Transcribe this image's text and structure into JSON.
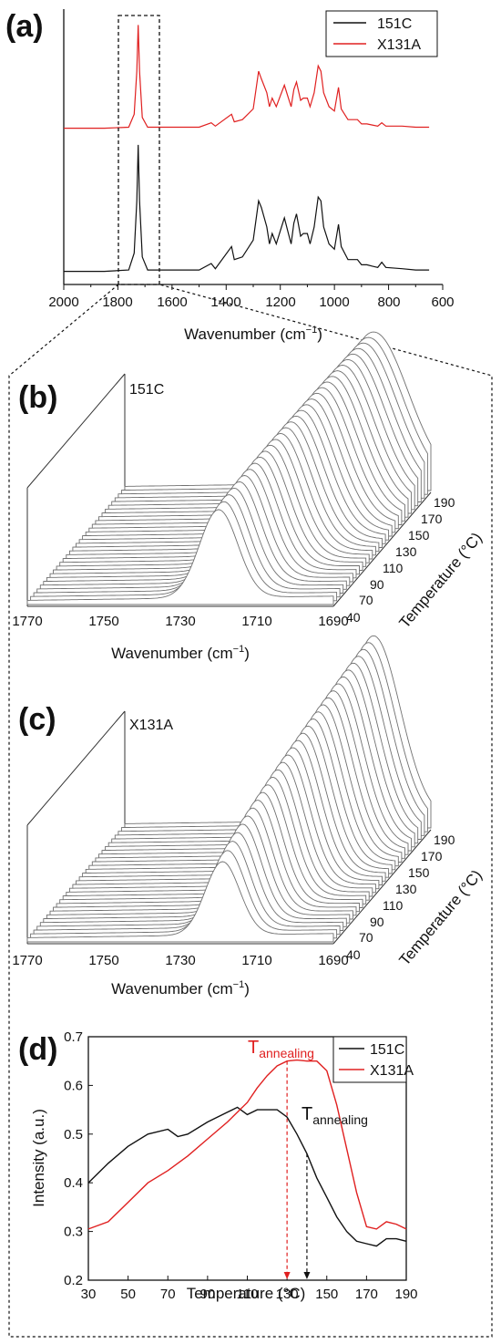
{
  "colors": {
    "s151C": "#111111",
    "sX131A": "#e02020",
    "stack": "#707070"
  },
  "panels": {
    "a": {
      "letter": "(a)",
      "xlabel": "Wavenumber (cm",
      "xlabel_sup": "−1",
      "xlabel_tail": ")",
      "xticks": [
        "2000",
        "1800",
        "1600",
        "1400",
        "1200",
        "1000",
        "800",
        "600"
      ],
      "legend": [
        "151C",
        "X131A"
      ]
    },
    "b": {
      "letter": "(b)",
      "label": "151C",
      "xticks": [
        "1770",
        "1750",
        "1730",
        "1710",
        "1690"
      ],
      "xlabel": "Wavenumber (cm",
      "xlabel_sup": "−1",
      "xlabel_tail": ")",
      "ticks_temp": [
        "40",
        "70",
        "90",
        "110",
        "130",
        "150",
        "170",
        "190"
      ],
      "temp_label": "Temperature (°C)"
    },
    "c": {
      "letter": "(c)",
      "label": "X131A",
      "xticks": [
        "1770",
        "1750",
        "1730",
        "1710",
        "1690"
      ],
      "xlabel": "Wavenumber (cm",
      "xlabel_sup": "−1",
      "xlabel_tail": ")",
      "ticks_temp": [
        "40",
        "70",
        "90",
        "110",
        "130",
        "150",
        "170",
        "190"
      ],
      "temp_label": "Temperature (°C)"
    },
    "d": {
      "letter": "(d)",
      "xlabel": "Temperature (°C)",
      "ylabel": "Intensity (a.u.)",
      "annot_red_main": "T",
      "annot_red_sub": "annealing",
      "annot_black_main": "T",
      "annot_black_sub": "annealing",
      "legend": [
        "151C",
        "X131A"
      ]
    }
  },
  "chart_data": [
    {
      "type": "line",
      "panel": "a",
      "xlabel": "Wavenumber (cm−1)",
      "ylabel": "",
      "xlim": [
        2000,
        600
      ],
      "x_reversed": true,
      "series": [
        {
          "name": "X131A",
          "color": "#e02020",
          "points": [
            [
              2000,
              0.02
            ],
            [
              1850,
              0.02
            ],
            [
              1760,
              0.03
            ],
            [
              1740,
              0.15
            ],
            [
              1730,
              0.55
            ],
            [
              1725,
              0.98
            ],
            [
              1720,
              0.55
            ],
            [
              1710,
              0.12
            ],
            [
              1690,
              0.03
            ],
            [
              1500,
              0.03
            ],
            [
              1455,
              0.07
            ],
            [
              1440,
              0.04
            ],
            [
              1380,
              0.15
            ],
            [
              1370,
              0.08
            ],
            [
              1340,
              0.1
            ],
            [
              1300,
              0.2
            ],
            [
              1280,
              0.55
            ],
            [
              1270,
              0.48
            ],
            [
              1250,
              0.35
            ],
            [
              1240,
              0.22
            ],
            [
              1230,
              0.3
            ],
            [
              1215,
              0.22
            ],
            [
              1200,
              0.32
            ],
            [
              1185,
              0.42
            ],
            [
              1170,
              0.3
            ],
            [
              1160,
              0.22
            ],
            [
              1150,
              0.38
            ],
            [
              1140,
              0.45
            ],
            [
              1125,
              0.28
            ],
            [
              1115,
              0.3
            ],
            [
              1100,
              0.3
            ],
            [
              1090,
              0.22
            ],
            [
              1075,
              0.35
            ],
            [
              1060,
              0.6
            ],
            [
              1050,
              0.55
            ],
            [
              1040,
              0.35
            ],
            [
              1020,
              0.22
            ],
            [
              1000,
              0.18
            ],
            [
              985,
              0.4
            ],
            [
              975,
              0.2
            ],
            [
              950,
              0.1
            ],
            [
              915,
              0.1
            ],
            [
              900,
              0.06
            ],
            [
              880,
              0.06
            ],
            [
              860,
              0.05
            ],
            [
              840,
              0.04
            ],
            [
              825,
              0.07
            ],
            [
              810,
              0.04
            ],
            [
              750,
              0.04
            ],
            [
              700,
              0.03
            ],
            [
              650,
              0.03
            ]
          ]
        },
        {
          "name": "151C",
          "color": "#111111",
          "points": [
            [
              2000,
              0.01
            ],
            [
              1850,
              0.01
            ],
            [
              1760,
              0.02
            ],
            [
              1740,
              0.15
            ],
            [
              1730,
              0.55
            ],
            [
              1725,
              0.98
            ],
            [
              1720,
              0.55
            ],
            [
              1710,
              0.12
            ],
            [
              1690,
              0.02
            ],
            [
              1500,
              0.02
            ],
            [
              1455,
              0.07
            ],
            [
              1440,
              0.03
            ],
            [
              1380,
              0.2
            ],
            [
              1370,
              0.1
            ],
            [
              1340,
              0.12
            ],
            [
              1300,
              0.25
            ],
            [
              1280,
              0.55
            ],
            [
              1270,
              0.5
            ],
            [
              1250,
              0.35
            ],
            [
              1240,
              0.22
            ],
            [
              1230,
              0.3
            ],
            [
              1215,
              0.22
            ],
            [
              1200,
              0.32
            ],
            [
              1185,
              0.42
            ],
            [
              1170,
              0.3
            ],
            [
              1160,
              0.22
            ],
            [
              1150,
              0.38
            ],
            [
              1140,
              0.45
            ],
            [
              1125,
              0.28
            ],
            [
              1115,
              0.3
            ],
            [
              1100,
              0.3
            ],
            [
              1090,
              0.22
            ],
            [
              1075,
              0.35
            ],
            [
              1060,
              0.58
            ],
            [
              1050,
              0.55
            ],
            [
              1040,
              0.35
            ],
            [
              1020,
              0.22
            ],
            [
              1000,
              0.18
            ],
            [
              985,
              0.37
            ],
            [
              975,
              0.2
            ],
            [
              950,
              0.1
            ],
            [
              915,
              0.1
            ],
            [
              900,
              0.06
            ],
            [
              880,
              0.06
            ],
            [
              860,
              0.05
            ],
            [
              840,
              0.04
            ],
            [
              825,
              0.08
            ],
            [
              810,
              0.04
            ],
            [
              750,
              0.03
            ],
            [
              700,
              0.02
            ],
            [
              650,
              0.02
            ]
          ]
        }
      ]
    },
    {
      "type": "line",
      "panel": "b",
      "label": "151C",
      "xlim": [
        1770,
        1690
      ],
      "x_reversed": true,
      "temperatures": [
        40,
        45,
        50,
        55,
        60,
        65,
        70,
        75,
        80,
        85,
        90,
        95,
        100,
        105,
        110,
        115,
        120,
        125,
        130,
        135,
        140,
        145,
        150,
        155,
        160,
        165,
        170,
        175,
        180,
        185,
        190
      ],
      "peak_center": [
        1720,
        1705
      ],
      "peak_width": [
        5,
        9
      ],
      "peak_height": [
        0.42,
        0.72
      ]
    },
    {
      "type": "line",
      "panel": "c",
      "label": "X131A",
      "xlim": [
        1770,
        1690
      ],
      "x_reversed": true,
      "temperatures": [
        40,
        45,
        50,
        55,
        60,
        65,
        70,
        75,
        80,
        85,
        90,
        95,
        100,
        105,
        110,
        115,
        120,
        125,
        130,
        135,
        140,
        145,
        150,
        155,
        160,
        165,
        170,
        175,
        180,
        185,
        190
      ],
      "peak_center": [
        1719,
        1705
      ],
      "peak_width": [
        4.5,
        7
      ],
      "peak_height": [
        0.35,
        0.88
      ]
    },
    {
      "type": "line",
      "panel": "d",
      "xlabel": "Temperature (°C)",
      "ylabel": "Intensity (a.u.)",
      "xlim": [
        30,
        190
      ],
      "ylim": [
        0.2,
        0.7
      ],
      "xticks": [
        30,
        50,
        70,
        90,
        110,
        130,
        150,
        170,
        190
      ],
      "yticks": [
        0.2,
        0.3,
        0.4,
        0.5,
        0.6,
        0.7
      ],
      "markers": [
        {
          "x": 130,
          "series": "X131A"
        },
        {
          "x": 140,
          "series": "151C"
        }
      ],
      "series": [
        {
          "name": "151C",
          "color": "#111111",
          "points": [
            [
              30,
              0.4
            ],
            [
              40,
              0.44
            ],
            [
              50,
              0.475
            ],
            [
              60,
              0.5
            ],
            [
              70,
              0.51
            ],
            [
              75,
              0.495
            ],
            [
              80,
              0.5
            ],
            [
              90,
              0.525
            ],
            [
              100,
              0.545
            ],
            [
              105,
              0.555
            ],
            [
              110,
              0.54
            ],
            [
              115,
              0.55
            ],
            [
              120,
              0.55
            ],
            [
              125,
              0.55
            ],
            [
              130,
              0.535
            ],
            [
              135,
              0.5
            ],
            [
              140,
              0.46
            ],
            [
              145,
              0.41
            ],
            [
              150,
              0.37
            ],
            [
              155,
              0.33
            ],
            [
              160,
              0.3
            ],
            [
              165,
              0.28
            ],
            [
              170,
              0.275
            ],
            [
              175,
              0.27
            ],
            [
              180,
              0.285
            ],
            [
              185,
              0.285
            ],
            [
              190,
              0.28
            ]
          ]
        },
        {
          "name": "X131A",
          "color": "#e02020",
          "points": [
            [
              30,
              0.305
            ],
            [
              40,
              0.32
            ],
            [
              50,
              0.36
            ],
            [
              60,
              0.4
            ],
            [
              70,
              0.425
            ],
            [
              80,
              0.455
            ],
            [
              90,
              0.49
            ],
            [
              100,
              0.525
            ],
            [
              110,
              0.565
            ],
            [
              115,
              0.595
            ],
            [
              120,
              0.62
            ],
            [
              125,
              0.64
            ],
            [
              130,
              0.65
            ],
            [
              135,
              0.652
            ],
            [
              140,
              0.65
            ],
            [
              145,
              0.65
            ],
            [
              150,
              0.63
            ],
            [
              155,
              0.56
            ],
            [
              160,
              0.47
            ],
            [
              165,
              0.38
            ],
            [
              170,
              0.31
            ],
            [
              175,
              0.305
            ],
            [
              180,
              0.32
            ],
            [
              185,
              0.315
            ],
            [
              190,
              0.305
            ]
          ]
        }
      ]
    }
  ]
}
